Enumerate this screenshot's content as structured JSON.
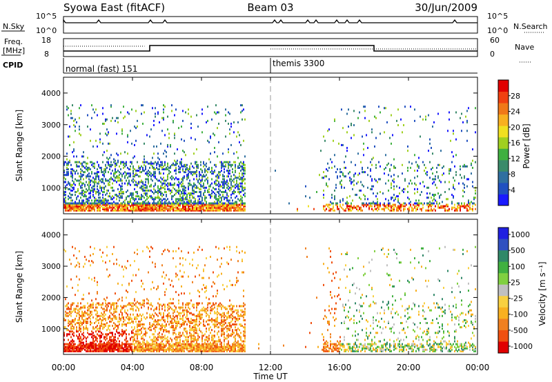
{
  "header": {
    "title": "Syowa East (fitACF)",
    "beam": "Beam 03",
    "date": "30/Jun/2009"
  },
  "status_panels": {
    "nsky_label": "N.Sky",
    "nsky_ticks": [
      "10^5",
      "10^0"
    ],
    "nsearch_label": "N.Search",
    "nsearch_ticks": [
      "10^5",
      "10^0"
    ],
    "freq_label_1": "Freq.",
    "freq_label_2": "[MHz]",
    "freq_ticks": [
      "18",
      "8"
    ],
    "nave_label": "Nave",
    "nave_ticks": [
      "60",
      "0"
    ],
    "cpid_label": "CPID",
    "cpid_modes": [
      {
        "label": "normal (fast) 151",
        "start_hour": 0
      },
      {
        "label": "themis 3300",
        "start_hour": 12
      }
    ]
  },
  "colors": {
    "power_scale": [
      "#1a1aff",
      "#2050c0",
      "#2f6fa0",
      "#3a8a6a",
      "#40b040",
      "#a0d020",
      "#f0e020",
      "#f8b020",
      "#f07818",
      "#f04010",
      "#e00000"
    ],
    "velocity_scale": [
      "#2020e0",
      "#3050c0",
      "#308868",
      "#40b040",
      "#80d040",
      "#c0c0c0",
      "#f8d040",
      "#f8b020",
      "#f08020",
      "#f05010",
      "#e00000"
    ]
  },
  "chart_data": [
    {
      "type": "heatmap",
      "panel": "power",
      "x_label": "",
      "y_label": "Slant Range [km]",
      "x_range_hours": [
        0,
        24
      ],
      "y_range_km": [
        180,
        4500
      ],
      "y_ticks": [
        "1000",
        "2000",
        "3000",
        "4000"
      ],
      "colorbar_label": "Power [dB]",
      "colorbar_ticks": [
        "4",
        "8",
        "12",
        "16",
        "20",
        "24",
        "28"
      ],
      "colorbar_range": [
        0,
        32
      ]
    },
    {
      "type": "heatmap",
      "panel": "velocity",
      "x_label": "Time UT",
      "y_label": "Slant Range [km]",
      "x_range_hours": [
        0,
        24
      ],
      "x_ticks": [
        "00:00",
        "04:00",
        "08:00",
        "12:00",
        "16:00",
        "20:00",
        "00:00"
      ],
      "y_range_km": [
        180,
        4500
      ],
      "y_ticks": [
        "1000",
        "2000",
        "3000",
        "4000"
      ],
      "colorbar_label": "Velocity [m s⁻¹]",
      "colorbar_ticks": [
        "1000",
        "500",
        "100",
        "25",
        "-25",
        "-100",
        "-500",
        "-1000"
      ]
    }
  ]
}
